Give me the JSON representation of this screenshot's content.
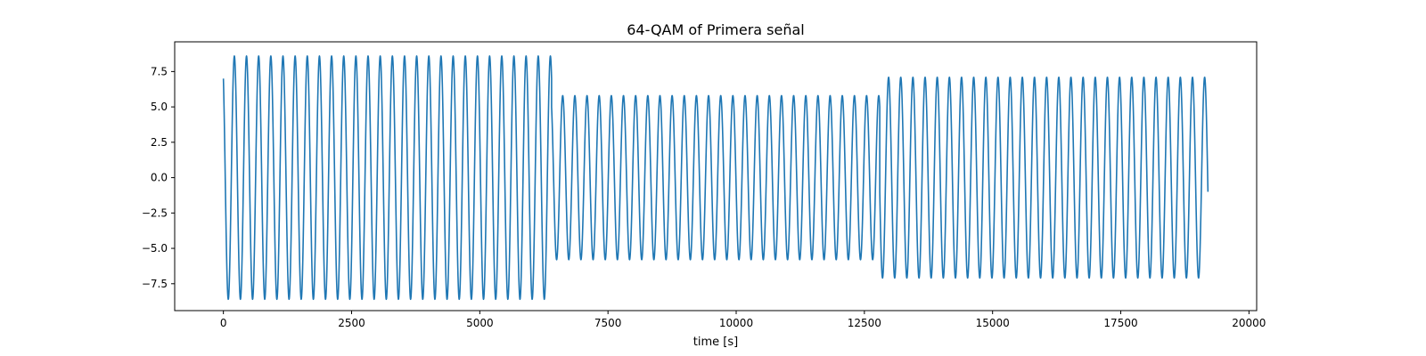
{
  "chart_data": {
    "type": "line",
    "title": "64-QAM of Primera señal",
    "xlabel": "time [s]",
    "ylabel": "",
    "xlim": [
      -950,
      20150
    ],
    "ylim": [
      -9.4,
      9.6
    ],
    "grid": false,
    "xticks": [
      0,
      2500,
      5000,
      7500,
      10000,
      12500,
      15000,
      17500,
      20000
    ],
    "xtick_labels": [
      "0",
      "2500",
      "5000",
      "7500",
      "10000",
      "12500",
      "15000",
      "17500",
      "20000"
    ],
    "yticks": [
      7.5,
      5.0,
      2.5,
      0.0,
      -2.5,
      -5.0,
      -7.5
    ],
    "ytick_labels": [
      "7.5",
      "5.0",
      "2.5",
      "0.0",
      "−2.5",
      "−5.0",
      "−7.5"
    ],
    "series": [
      {
        "color": "#1f77b4",
        "segments": [
          {
            "t_start": 0,
            "t_end": 6400,
            "amplitude": 8.6,
            "start_value": 7.0,
            "cycles": 27
          },
          {
            "t_start": 6400,
            "t_end": 12800,
            "amplitude": 5.8,
            "start_value": 5.0,
            "cycles": 27
          },
          {
            "t_start": 12800,
            "t_end": 19200,
            "amplitude": 7.1,
            "start_value": -1.0,
            "cycles": 27
          }
        ]
      }
    ]
  }
}
